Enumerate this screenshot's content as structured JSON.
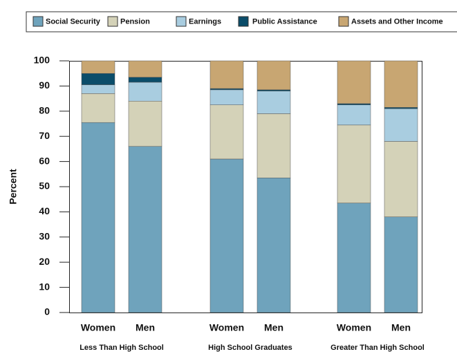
{
  "chart_data": {
    "type": "stacked-bar",
    "y_label": "Percent",
    "categories": [
      "Women",
      "Men",
      "Women",
      "Men",
      "Women",
      "Men"
    ],
    "groups": [
      "Less Than High School",
      "High School Graduates",
      "Greater Than High School"
    ],
    "series": [
      {
        "name": "Social Security",
        "color": "#6fa3bc",
        "values": [
          75.5,
          66,
          61,
          53.5,
          43.5,
          38
        ]
      },
      {
        "name": "Pension",
        "color": "#d4d2b8",
        "values": [
          11.5,
          18,
          21.5,
          25.5,
          31,
          30
        ]
      },
      {
        "name": "Earnings",
        "color": "#a9cde0",
        "values": [
          3.5,
          7.5,
          6,
          9,
          8,
          13
        ]
      },
      {
        "name": "Public Assistance",
        "color": "#0b4d6a",
        "values": [
          4.5,
          2,
          0.5,
          0.5,
          0.5,
          0.5
        ]
      },
      {
        "name": "Assets and Other Income",
        "color": "#c8a672",
        "values": [
          5,
          6.5,
          11,
          11.5,
          17,
          18.5
        ]
      }
    ],
    "ylim": [
      0,
      100
    ],
    "yticks": [
      0,
      10,
      20,
      30,
      40,
      50,
      60,
      70,
      80,
      90,
      100
    ]
  }
}
